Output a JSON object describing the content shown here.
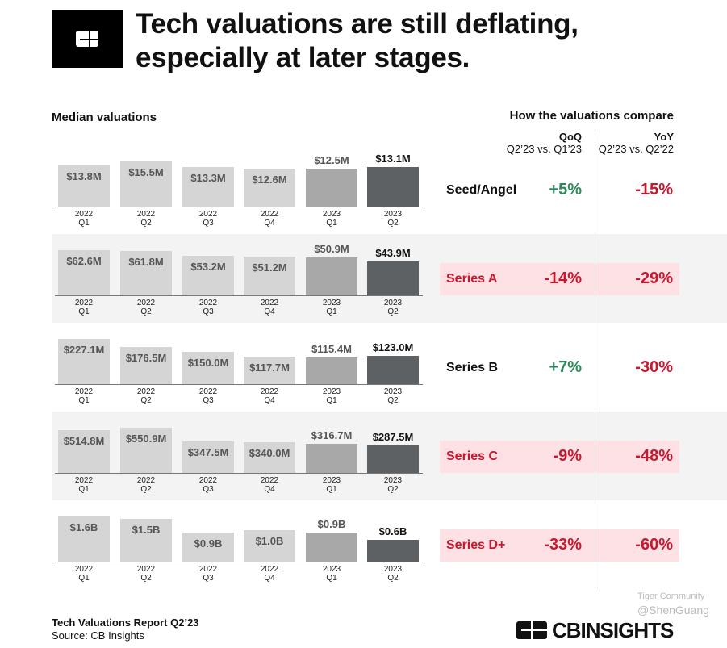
{
  "header": {
    "title_line1": "Tech valuations are still deflating,",
    "title_line2": "especially at later stages."
  },
  "left_heading": "Median valuations",
  "right_heading": "How the valuations compare",
  "columns": {
    "qoq": "QoQ",
    "qoq_sub": "Q2’23 vs. Q1’23",
    "yoy": "YoY",
    "yoy_sub": "Q2’23 vs. Q2’22"
  },
  "colors": {
    "bar_2022": "#d5d5d5",
    "bar_2023_q1": "#a8a8a8",
    "bar_2023_q2": "#5e6163",
    "positive": "#2e8a5c",
    "negative": "#c8182f",
    "highlight": "#fde1e4",
    "band": "#f3f3f3"
  },
  "chart_data": {
    "type": "bar",
    "title": "Median valuations",
    "categories": [
      [
        "2022",
        "Q1"
      ],
      [
        "2022",
        "Q2"
      ],
      [
        "2022",
        "Q3"
      ],
      [
        "2022",
        "Q4"
      ],
      [
        "2023",
        "Q1"
      ],
      [
        "2023",
        "Q2"
      ]
    ],
    "groups": [
      {
        "stage": "Seed/Angel",
        "labels": [
          "$13.8M",
          "$15.5M",
          "$13.3M",
          "$12.6M",
          "$12.5M",
          "$13.1M"
        ],
        "values": [
          13.8,
          15.5,
          13.3,
          12.6,
          12.5,
          13.1
        ],
        "unit": "$M",
        "qoq": "+5%",
        "yoy": "-15%",
        "qoq_positive": true,
        "highlight": false
      },
      {
        "stage": "Series A",
        "labels": [
          "$62.6M",
          "$61.8M",
          "$53.2M",
          "$51.2M",
          "$50.9M",
          "$43.9M"
        ],
        "values": [
          62.6,
          61.8,
          53.2,
          51.2,
          50.9,
          43.9
        ],
        "unit": "$M",
        "qoq": "-14%",
        "yoy": "-29%",
        "qoq_positive": false,
        "highlight": true
      },
      {
        "stage": "Series B",
        "labels": [
          "$227.1M",
          "$176.5M",
          "$150.0M",
          "$117.7M",
          "$115.4M",
          "$123.0M"
        ],
        "values": [
          227.1,
          176.5,
          150.0,
          117.7,
          115.4,
          123.0
        ],
        "unit": "$M",
        "qoq": "+7%",
        "yoy": "-30%",
        "qoq_positive": true,
        "highlight": false
      },
      {
        "stage": "Series C",
        "labels": [
          "$514.8M",
          "$550.9M",
          "$347.5M",
          "$340.0M",
          "$316.7M",
          "$287.5M"
        ],
        "values": [
          514.8,
          550.9,
          347.5,
          340.0,
          316.7,
          287.5
        ],
        "unit": "$M",
        "qoq": "-9%",
        "yoy": "-48%",
        "qoq_positive": false,
        "highlight": true
      },
      {
        "stage": "Series D+",
        "labels": [
          "$1.6B",
          "$1.5B",
          "$0.9B",
          "$1.0B",
          "$0.9B",
          "$0.6B"
        ],
        "values": [
          1.6,
          1.5,
          0.9,
          1.0,
          0.9,
          0.6
        ],
        "unit": "$B",
        "qoq": "-33%",
        "yoy": "-60%",
        "qoq_positive": false,
        "highlight": true
      }
    ]
  },
  "footer": {
    "report": "Tech Valuations Report Q2’23",
    "source": "Source: CB Insights",
    "brand": "CBINSIGHTS",
    "watermark1": "Tiger Community",
    "watermark2": "@ShenGuang"
  }
}
